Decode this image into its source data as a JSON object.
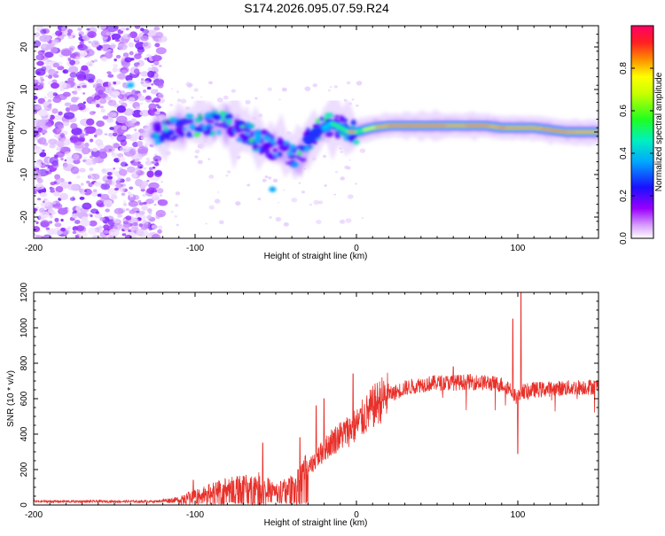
{
  "figure": {
    "title": "S174.2026.095.07.59.R24"
  },
  "chart_data": [
    {
      "type": "heatmap",
      "name": "spectrogram",
      "xlabel": "Height of straight line (km)",
      "ylabel": "Frequency (Hz)",
      "xlim": [
        -200,
        150
      ],
      "ylim": [
        -25,
        25
      ],
      "xticks": [
        -200,
        -100,
        0,
        100
      ],
      "xtick_labels": [
        "-200",
        "-100",
        "0",
        "100"
      ],
      "yticks": [
        -20,
        -10,
        0,
        10,
        20
      ],
      "ytick_labels": [
        "-20",
        "-10",
        "0",
        "10",
        "20"
      ],
      "ridge": {
        "description_points_x": [
          -125,
          -110,
          -95,
          -80,
          -70,
          -60,
          -55,
          -50,
          -45,
          -40,
          -35,
          -30,
          -25,
          -20,
          -15,
          -10,
          -5,
          0,
          10,
          20,
          40,
          60,
          80,
          90,
          100,
          110,
          120,
          130,
          140,
          150
        ],
        "description_points_y": [
          0,
          1,
          2,
          2,
          0,
          -2,
          -3,
          -4,
          -4.5,
          -5,
          -6,
          -2,
          0,
          1,
          2,
          1,
          0,
          0,
          1,
          1.5,
          1.5,
          1.5,
          1.5,
          1,
          1,
          1,
          0.5,
          0,
          0,
          0
        ]
      },
      "colorbar": {
        "label": "Normalized spectral amplitude",
        "ticks": [
          0.0,
          0.2,
          0.4,
          0.6,
          0.8
        ],
        "tick_labels": [
          "0.0",
          "0.2",
          "0.4",
          "0.6",
          "0.8"
        ],
        "range": [
          0,
          1
        ]
      }
    },
    {
      "type": "line",
      "name": "snr",
      "xlabel": "Height of straight line (km)",
      "ylabel": "SNR (10 * v/v)",
      "xlim": [
        -200,
        150
      ],
      "ylim": [
        0,
        1200
      ],
      "xticks": [
        -200,
        -100,
        0,
        100
      ],
      "xtick_labels": [
        "-200",
        "-100",
        "0",
        "100"
      ],
      "yticks": [
        0,
        200,
        400,
        600,
        800,
        1000,
        1200
      ],
      "ytick_labels": [
        "0",
        "200",
        "400",
        "600",
        "800",
        "1000",
        "1200"
      ],
      "color": "#e8302a",
      "trend_x": [
        -200,
        -125,
        -110,
        -100,
        -90,
        -80,
        -70,
        -60,
        -50,
        -40,
        -35,
        -30,
        -25,
        -20,
        -15,
        -10,
        -5,
        0,
        5,
        10,
        15,
        20,
        30,
        40,
        50,
        60,
        70,
        80,
        90,
        95,
        100,
        102,
        105,
        110,
        120,
        130,
        140,
        150
      ],
      "trend_y": [
        20,
        20,
        30,
        60,
        80,
        100,
        110,
        120,
        80,
        110,
        150,
        200,
        260,
        310,
        360,
        390,
        420,
        450,
        500,
        550,
        590,
        620,
        660,
        680,
        690,
        690,
        695,
        690,
        680,
        660,
        600,
        650,
        640,
        650,
        655,
        660,
        665,
        670
      ],
      "spikes": [
        {
          "x": -101,
          "y": 140
        },
        {
          "x": -58,
          "y": 350
        },
        {
          "x": -35,
          "y": 380
        },
        {
          "x": -25,
          "y": 560
        },
        {
          "x": -20,
          "y": 600
        },
        {
          "x": -2,
          "y": 740
        },
        {
          "x": 60,
          "y": 780
        },
        {
          "x": 97,
          "y": 1050
        },
        {
          "x": 100,
          "y": 290
        },
        {
          "x": 102,
          "y": 1200
        }
      ]
    }
  ]
}
